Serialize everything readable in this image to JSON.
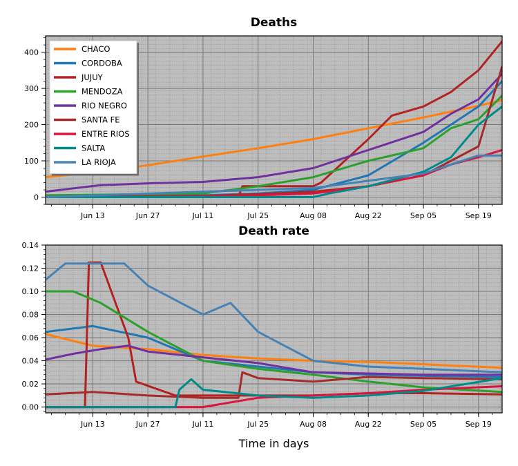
{
  "chart_data": [
    {
      "type": "line",
      "title": "Deaths",
      "xlabel": "",
      "ylabel": "",
      "ylim": [
        -20,
        445
      ],
      "y_ticks": [
        "0",
        "100",
        "200",
        "300",
        "400"
      ],
      "x_ticks": [
        "Jun 13",
        "Jun 27",
        "Jul 11",
        "Jul 25",
        "Aug 08",
        "Aug 22",
        "Sep 05",
        "Sep 19"
      ],
      "x_range": [
        "2020-06-01",
        "2020-09-25"
      ],
      "grid": true,
      "legend": "top-left",
      "series": [
        {
          "name": "CHACO",
          "color": "#ff7f0e",
          "x": [
            "2020-06-01",
            "2020-06-15",
            "2020-06-27",
            "2020-07-11",
            "2020-07-25",
            "2020-08-08",
            "2020-08-22",
            "2020-09-05",
            "2020-09-19",
            "2020-09-25"
          ],
          "values": [
            55,
            70,
            88,
            112,
            135,
            160,
            190,
            220,
            252,
            268
          ]
        },
        {
          "name": "CORDOBA",
          "color": "#1f77b4",
          "x": [
            "2020-06-01",
            "2020-07-11",
            "2020-07-25",
            "2020-08-08",
            "2020-08-22",
            "2020-09-05",
            "2020-09-12",
            "2020-09-19",
            "2020-09-25"
          ],
          "values": [
            0,
            5,
            10,
            20,
            60,
            150,
            200,
            250,
            320
          ]
        },
        {
          "name": "JUJUY",
          "color": "#b22222",
          "x": [
            "2020-06-01",
            "2020-07-20",
            "2020-07-21",
            "2020-08-08",
            "2020-08-10",
            "2020-08-22",
            "2020-08-28",
            "2020-09-05",
            "2020-09-12",
            "2020-09-19",
            "2020-09-25"
          ],
          "values": [
            0,
            0,
            30,
            30,
            40,
            160,
            225,
            250,
            290,
            350,
            430
          ]
        },
        {
          "name": "MENDOZA",
          "color": "#2ca02c",
          "x": [
            "2020-06-01",
            "2020-07-11",
            "2020-07-25",
            "2020-08-08",
            "2020-08-22",
            "2020-09-05",
            "2020-09-12",
            "2020-09-19",
            "2020-09-25"
          ],
          "values": [
            5,
            10,
            30,
            55,
            100,
            135,
            190,
            215,
            280
          ]
        },
        {
          "name": "RIO NEGRO",
          "color": "#7030a0",
          "x": [
            "2020-06-01",
            "2020-06-15",
            "2020-06-27",
            "2020-07-11",
            "2020-07-25",
            "2020-08-08",
            "2020-08-22",
            "2020-09-05",
            "2020-09-12",
            "2020-09-19",
            "2020-09-25"
          ],
          "values": [
            15,
            33,
            38,
            42,
            55,
            80,
            130,
            180,
            230,
            270,
            340
          ]
        },
        {
          "name": "SANTA FE",
          "color": "#a52a2a",
          "x": [
            "2020-06-01",
            "2020-07-11",
            "2020-07-25",
            "2020-08-08",
            "2020-08-22",
            "2020-09-05",
            "2020-09-12",
            "2020-09-19",
            "2020-09-25"
          ],
          "values": [
            0,
            3,
            8,
            15,
            30,
            60,
            100,
            140,
            360
          ]
        },
        {
          "name": "ENTRE RIOS",
          "color": "#dc143c",
          "x": [
            "2020-06-01",
            "2020-07-11",
            "2020-07-25",
            "2020-08-08",
            "2020-08-22",
            "2020-09-05",
            "2020-09-12",
            "2020-09-19",
            "2020-09-25"
          ],
          "values": [
            0,
            2,
            5,
            10,
            30,
            60,
            90,
            110,
            130
          ]
        },
        {
          "name": "SALTA",
          "color": "#008b8b",
          "x": [
            "2020-06-01",
            "2020-07-11",
            "2020-08-08",
            "2020-08-12",
            "2020-08-22",
            "2020-09-05",
            "2020-09-12",
            "2020-09-19",
            "2020-09-25"
          ],
          "values": [
            0,
            0,
            0,
            10,
            30,
            70,
            110,
            200,
            250
          ]
        },
        {
          "name": "LA RIOJA",
          "color": "#4682b4",
          "x": [
            "2020-06-01",
            "2020-07-11",
            "2020-07-25",
            "2020-08-08",
            "2020-08-22",
            "2020-09-05",
            "2020-09-12",
            "2020-09-19",
            "2020-09-25"
          ],
          "values": [
            0,
            15,
            20,
            25,
            45,
            65,
            90,
            115,
            115
          ]
        }
      ]
    },
    {
      "type": "line",
      "title": "Death rate",
      "xlabel": "Time in days",
      "ylabel": "",
      "ylim": [
        -0.005,
        0.14
      ],
      "y_ticks": [
        "0.00",
        "0.02",
        "0.04",
        "0.06",
        "0.08",
        "0.10",
        "0.12",
        "0.14"
      ],
      "x_ticks": [
        "Jun 13",
        "Jun 27",
        "Jul 11",
        "Jul 25",
        "Aug 08",
        "Aug 22",
        "Sep 05",
        "Sep 19"
      ],
      "x_range": [
        "2020-06-01",
        "2020-09-25"
      ],
      "grid": true,
      "series": [
        {
          "name": "CHACO",
          "color": "#ff7f0e",
          "x": [
            "2020-06-01",
            "2020-06-13",
            "2020-06-27",
            "2020-07-11",
            "2020-07-25",
            "2020-08-08",
            "2020-08-22",
            "2020-09-05",
            "2020-09-25"
          ],
          "values": [
            0.063,
            0.053,
            0.05,
            0.045,
            0.042,
            0.04,
            0.039,
            0.037,
            0.034
          ]
        },
        {
          "name": "CORDOBA",
          "color": "#1f77b4",
          "x": [
            "2020-06-01",
            "2020-06-13",
            "2020-06-27",
            "2020-07-11",
            "2020-07-25",
            "2020-08-08",
            "2020-08-22",
            "2020-09-05",
            "2020-09-25"
          ],
          "values": [
            0.065,
            0.07,
            0.06,
            0.04,
            0.035,
            0.03,
            0.028,
            0.027,
            0.026
          ]
        },
        {
          "name": "JUJUY",
          "color": "#b22222",
          "x": [
            "2020-06-01",
            "2020-06-11",
            "2020-06-12",
            "2020-06-15",
            "2020-06-22",
            "2020-06-24",
            "2020-07-04",
            "2020-07-25",
            "2020-08-08",
            "2020-08-22",
            "2020-09-05",
            "2020-09-25"
          ],
          "values": [
            0.0,
            0.0,
            0.125,
            0.125,
            0.06,
            0.022,
            0.01,
            0.01,
            0.01,
            0.012,
            0.012,
            0.011
          ]
        },
        {
          "name": "MENDOZA",
          "color": "#2ca02c",
          "x": [
            "2020-06-01",
            "2020-06-08",
            "2020-06-15",
            "2020-06-27",
            "2020-07-11",
            "2020-07-25",
            "2020-08-08",
            "2020-08-22",
            "2020-09-05",
            "2020-09-25"
          ],
          "values": [
            0.1,
            0.1,
            0.09,
            0.065,
            0.04,
            0.033,
            0.028,
            0.022,
            0.017,
            0.013
          ]
        },
        {
          "name": "RIO NEGRO",
          "color": "#7030a0",
          "x": [
            "2020-06-01",
            "2020-06-08",
            "2020-06-15",
            "2020-06-22",
            "2020-06-27",
            "2020-07-11",
            "2020-07-25",
            "2020-08-08",
            "2020-08-22",
            "2020-09-05",
            "2020-09-25"
          ],
          "values": [
            0.041,
            0.046,
            0.05,
            0.053,
            0.048,
            0.043,
            0.038,
            0.03,
            0.029,
            0.028,
            0.028
          ]
        },
        {
          "name": "SANTA FE",
          "color": "#a52a2a",
          "x": [
            "2020-06-01",
            "2020-06-13",
            "2020-06-27",
            "2020-07-11",
            "2020-07-20",
            "2020-07-21",
            "2020-07-25",
            "2020-08-08",
            "2020-08-22",
            "2020-09-05",
            "2020-09-25"
          ],
          "values": [
            0.011,
            0.013,
            0.01,
            0.008,
            0.008,
            0.03,
            0.025,
            0.022,
            0.026,
            0.025,
            0.024
          ]
        },
        {
          "name": "ENTRE RIOS",
          "color": "#dc143c",
          "x": [
            "2020-06-01",
            "2020-06-27",
            "2020-07-11",
            "2020-07-25",
            "2020-08-08",
            "2020-08-22",
            "2020-09-05",
            "2020-09-25"
          ],
          "values": [
            0.0,
            0.0,
            0.0,
            0.008,
            0.01,
            0.012,
            0.015,
            0.018
          ]
        },
        {
          "name": "SALTA",
          "color": "#008b8b",
          "x": [
            "2020-06-01",
            "2020-07-04",
            "2020-07-05",
            "2020-07-08",
            "2020-07-11",
            "2020-07-25",
            "2020-08-08",
            "2020-08-22",
            "2020-09-05",
            "2020-09-25"
          ],
          "values": [
            0.0,
            0.0,
            0.015,
            0.024,
            0.015,
            0.01,
            0.008,
            0.01,
            0.014,
            0.025
          ]
        },
        {
          "name": "LA RIOJA",
          "color": "#4682b4",
          "x": [
            "2020-06-01",
            "2020-06-06",
            "2020-06-21",
            "2020-06-27",
            "2020-07-11",
            "2020-07-18",
            "2020-07-25",
            "2020-08-08",
            "2020-08-22",
            "2020-09-05",
            "2020-09-25"
          ],
          "values": [
            0.11,
            0.124,
            0.124,
            0.105,
            0.08,
            0.09,
            0.065,
            0.04,
            0.035,
            0.033,
            0.03
          ]
        }
      ]
    }
  ]
}
